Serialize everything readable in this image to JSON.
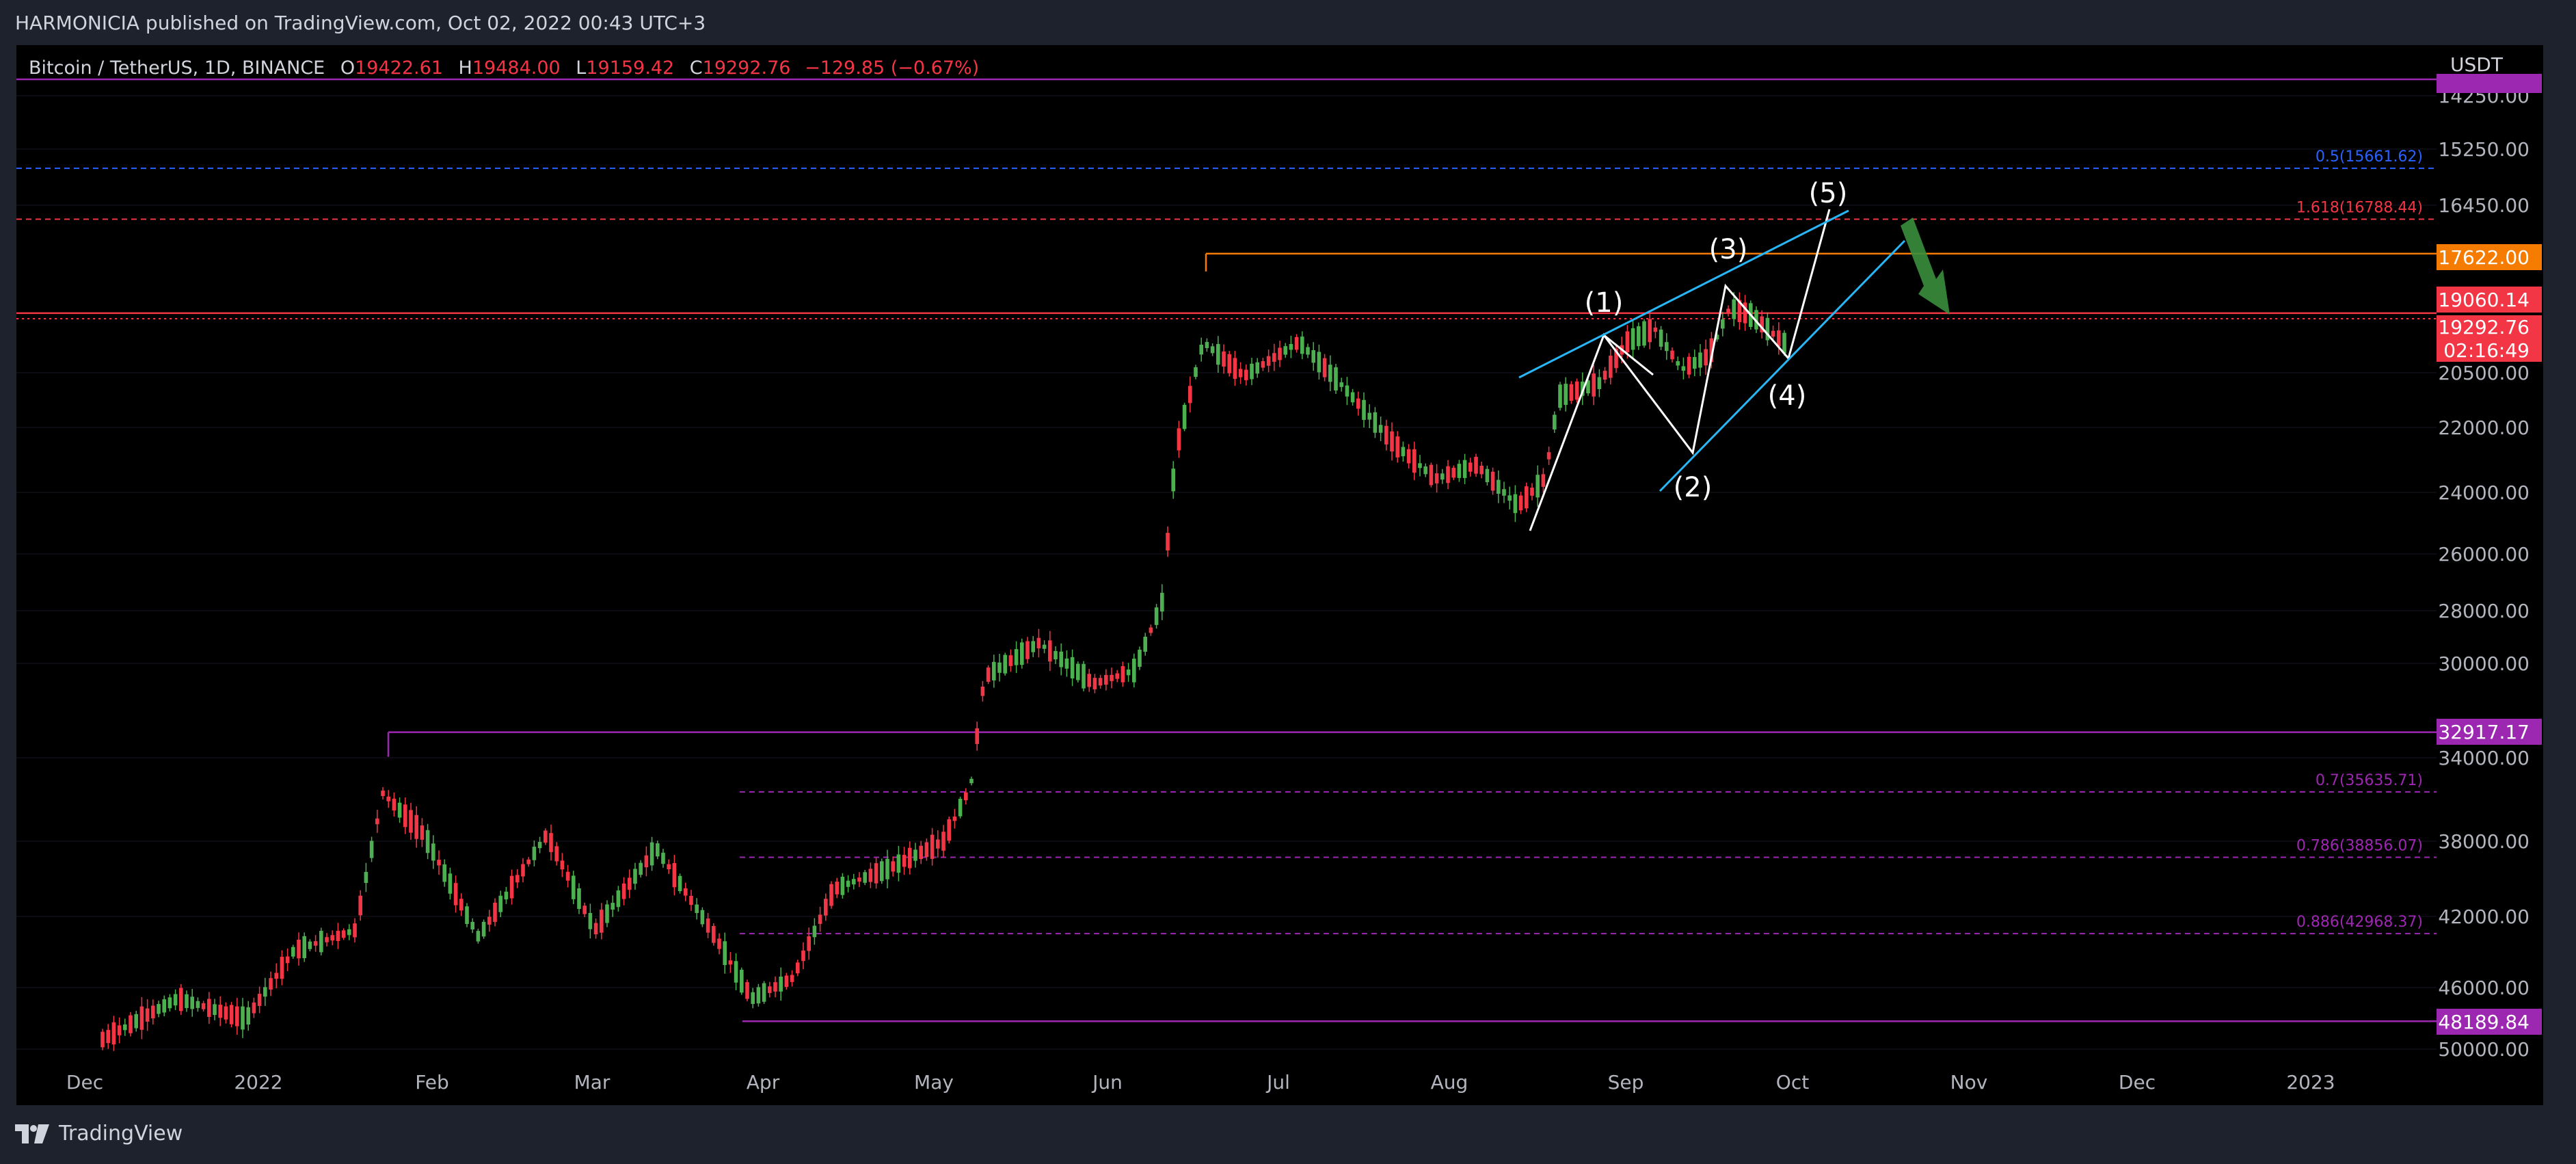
{
  "header": {
    "published_by": "HARMONICIA published on TradingView.com, Oct 02, 2022 00:43 UTC+3"
  },
  "legend": {
    "symbol": "Bitcoin / TetherUS, 1D, BINANCE",
    "open_label": "O",
    "open": "19422.61",
    "high_label": "H",
    "high": "19484.00",
    "low_label": "L",
    "low": "19159.42",
    "close_label": "C",
    "close": "19292.76",
    "change": "−129.85 (−0.67%)"
  },
  "footer": {
    "brand": "TradingView"
  },
  "chart_data": {
    "type": "candlestick",
    "currency": "USDT",
    "y_axis_inverted": true,
    "ylim": [
      13500,
      50500
    ],
    "y_ticks": [
      "14250.00",
      "15250.00",
      "16450.00",
      "20500.00",
      "22000.00",
      "24000.00",
      "26000.00",
      "28000.00",
      "30000.00",
      "34000.00",
      "38000.00",
      "42000.00",
      "46000.00",
      "50000.00"
    ],
    "x_ticks": [
      "Dec",
      "2022",
      "Feb",
      "Mar",
      "Apr",
      "May",
      "Jun",
      "Jul",
      "Aug",
      "Sep",
      "Oct",
      "Nov",
      "Dec",
      "2023"
    ],
    "price_badges": [
      {
        "value": "17622.00",
        "color": "#f57c00"
      },
      {
        "value": "19060.14",
        "color": "#f23645"
      },
      {
        "value": "19292.76",
        "color": "#f23645"
      },
      {
        "value": "02:16:49",
        "color": "#f23645"
      },
      {
        "value": "32917.17",
        "color": "#9c27b0"
      },
      {
        "value": "48189.84",
        "color": "#9c27b0"
      }
    ],
    "fib_levels": [
      {
        "label": "0.5(15661.62)",
        "price": 15661.62,
        "color": "#2962ff"
      },
      {
        "label": "1.618(16788.44)",
        "price": 16788.44,
        "color": "#f23645"
      },
      {
        "label": "0.7(35635.71)",
        "price": 35635.71,
        "color": "#9c27b0"
      },
      {
        "label": "0.786(38856.07)",
        "price": 38856.07,
        "color": "#9c27b0"
      },
      {
        "label": "0.886(42968.37)",
        "price": 42968.37,
        "color": "#9c27b0"
      }
    ],
    "horizontal_levels": [
      {
        "price": 17622,
        "color": "#f57c00"
      },
      {
        "price": 19060.14,
        "color": "#f23645"
      },
      {
        "price": 32917.17,
        "color": "#9c27b0"
      },
      {
        "price": 48189.84,
        "color": "#9c27b0"
      }
    ],
    "wave_labels": [
      "(1)",
      "(2)",
      "(3)",
      "(4)",
      "(5)"
    ],
    "colors": {
      "up": "#26a69a",
      "down": "#f23645",
      "bull_candle": "#4caf50",
      "channel": "#29b6f6",
      "arrow": "#388e3c"
    }
  }
}
